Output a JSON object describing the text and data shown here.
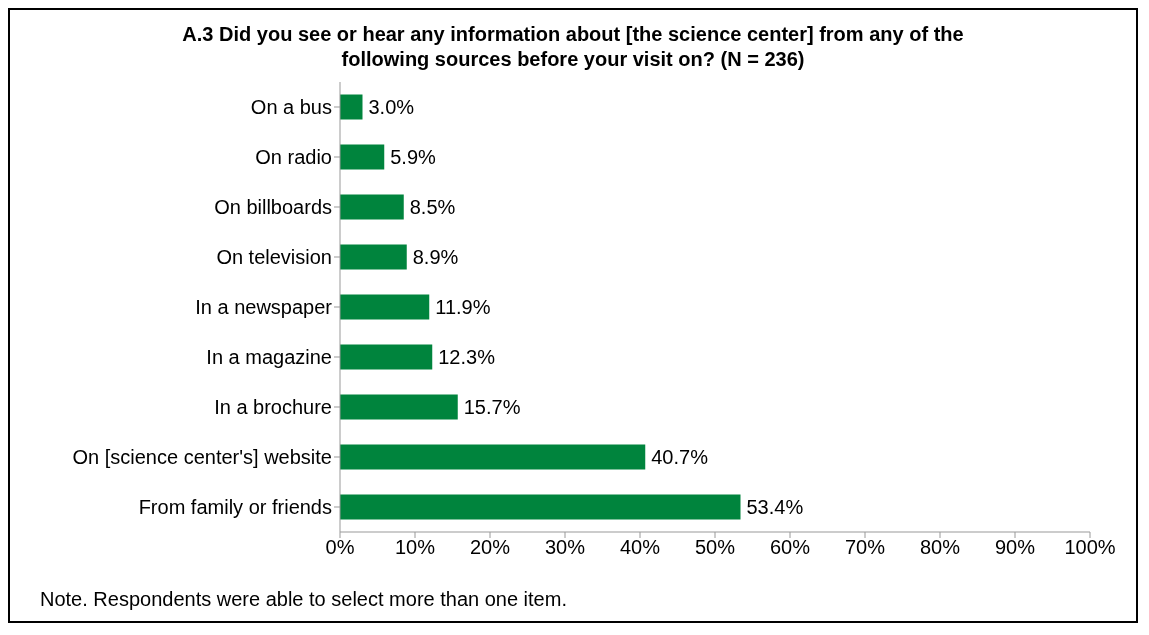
{
  "chart_data": {
    "type": "bar",
    "orientation": "horizontal",
    "title": "A.3 Did you see or hear any information about [the science center] from any of the following sources before your visit on? (N = 236)",
    "categories": [
      "On a bus",
      "On radio",
      "On billboards",
      "On television",
      "In a newspaper",
      "In a magazine",
      "In a brochure",
      "On [science center's] website",
      "From family or friends"
    ],
    "values": [
      3.0,
      5.9,
      8.5,
      8.9,
      11.9,
      12.3,
      15.7,
      40.7,
      53.4
    ],
    "value_labels": [
      "3.0%",
      "5.9%",
      "8.5%",
      "8.9%",
      "11.9%",
      "12.3%",
      "15.7%",
      "40.7%",
      "53.4%"
    ],
    "color": "#00843d",
    "xlim": [
      0,
      100
    ],
    "xticks": [
      {
        "value": 0,
        "label": "0%"
      },
      {
        "value": 10,
        "label": "10%"
      },
      {
        "value": 20,
        "label": "20%"
      },
      {
        "value": 30,
        "label": "30%"
      },
      {
        "value": 40,
        "label": "40%"
      },
      {
        "value": 50,
        "label": "50%"
      },
      {
        "value": 60,
        "label": "60%"
      },
      {
        "value": 70,
        "label": "70%"
      },
      {
        "value": 80,
        "label": "80%"
      },
      {
        "value": 90,
        "label": "90%"
      },
      {
        "value": 100,
        "label": "100%"
      }
    ],
    "grid": false,
    "legend": false,
    "annotations": [
      "Note. Respondents were able to select more than one item."
    ]
  }
}
